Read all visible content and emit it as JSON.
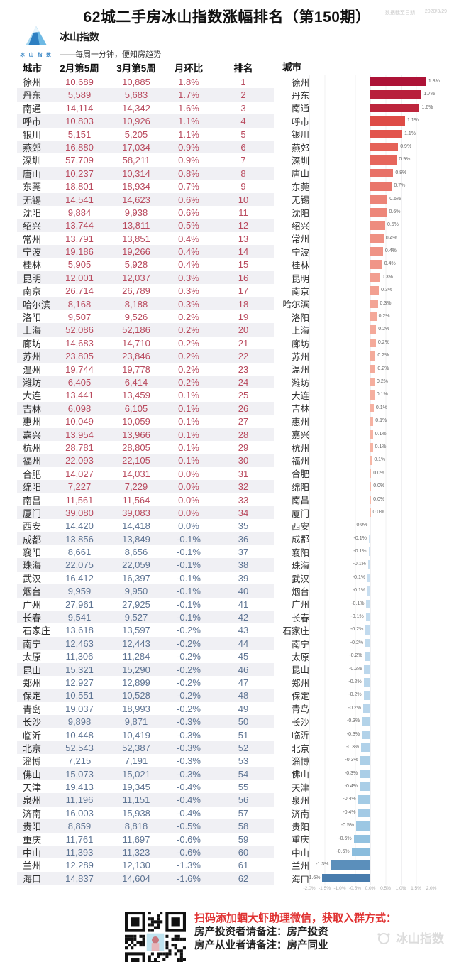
{
  "meta": {
    "note": "数据截至日期",
    "date": "2020/3/29"
  },
  "title": "62城二手房冰山指数涨幅排名（第150期）",
  "logo": {
    "name": "冰山指数",
    "caption": "冰 山 指 数",
    "tagline": "——每周一分钟，便知房趋势"
  },
  "table": {
    "headers": {
      "city": "城市",
      "feb": "2月第5周",
      "mar": "3月第5周",
      "mom": "月环比",
      "rank": "排名"
    }
  },
  "chart": {
    "city_header": "城市",
    "axis_ticks": [
      "-2.0%",
      "-1.5%",
      "-1.0%",
      "-0.5%",
      "0.0%",
      "0.5%",
      "1.0%",
      "1.5%",
      "2.0%"
    ]
  },
  "rows": [
    {
      "city": "徐州",
      "feb": "10,689",
      "mar": "10,885",
      "mom": "1.8%",
      "rank": "1"
    },
    {
      "city": "丹东",
      "feb": "5,589",
      "mar": "5,683",
      "mom": "1.7%",
      "rank": "2"
    },
    {
      "city": "南通",
      "feb": "14,114",
      "mar": "14,342",
      "mom": "1.6%",
      "rank": "3"
    },
    {
      "city": "呼市",
      "feb": "10,803",
      "mar": "10,926",
      "mom": "1.1%",
      "rank": "4"
    },
    {
      "city": "银川",
      "feb": "5,151",
      "mar": "5,205",
      "mom": "1.1%",
      "rank": "5"
    },
    {
      "city": "燕郊",
      "feb": "16,880",
      "mar": "17,034",
      "mom": "0.9%",
      "rank": "6"
    },
    {
      "city": "深圳",
      "feb": "57,709",
      "mar": "58,211",
      "mom": "0.9%",
      "rank": "7"
    },
    {
      "city": "唐山",
      "feb": "10,237",
      "mar": "10,314",
      "mom": "0.8%",
      "rank": "8"
    },
    {
      "city": "东莞",
      "feb": "18,801",
      "mar": "18,934",
      "mom": "0.7%",
      "rank": "9"
    },
    {
      "city": "无锡",
      "feb": "14,541",
      "mar": "14,623",
      "mom": "0.6%",
      "rank": "10"
    },
    {
      "city": "沈阳",
      "feb": "9,884",
      "mar": "9,938",
      "mom": "0.6%",
      "rank": "11"
    },
    {
      "city": "绍兴",
      "feb": "13,744",
      "mar": "13,811",
      "mom": "0.5%",
      "rank": "12"
    },
    {
      "city": "常州",
      "feb": "13,791",
      "mar": "13,851",
      "mom": "0.4%",
      "rank": "13"
    },
    {
      "city": "宁波",
      "feb": "19,186",
      "mar": "19,266",
      "mom": "0.4%",
      "rank": "14"
    },
    {
      "city": "桂林",
      "feb": "5,905",
      "mar": "5,928",
      "mom": "0.4%",
      "rank": "15"
    },
    {
      "city": "昆明",
      "feb": "12,001",
      "mar": "12,037",
      "mom": "0.3%",
      "rank": "16"
    },
    {
      "city": "南京",
      "feb": "26,714",
      "mar": "26,789",
      "mom": "0.3%",
      "rank": "17"
    },
    {
      "city": "哈尔滨",
      "feb": "8,168",
      "mar": "8,188",
      "mom": "0.3%",
      "rank": "18"
    },
    {
      "city": "洛阳",
      "feb": "9,507",
      "mar": "9,526",
      "mom": "0.2%",
      "rank": "19"
    },
    {
      "city": "上海",
      "feb": "52,086",
      "mar": "52,186",
      "mom": "0.2%",
      "rank": "20"
    },
    {
      "city": "廊坊",
      "feb": "14,683",
      "mar": "14,710",
      "mom": "0.2%",
      "rank": "21"
    },
    {
      "city": "苏州",
      "feb": "23,805",
      "mar": "23,846",
      "mom": "0.2%",
      "rank": "22"
    },
    {
      "city": "温州",
      "feb": "19,744",
      "mar": "19,778",
      "mom": "0.2%",
      "rank": "23"
    },
    {
      "city": "潍坊",
      "feb": "6,405",
      "mar": "6,414",
      "mom": "0.2%",
      "rank": "24"
    },
    {
      "city": "大连",
      "feb": "13,441",
      "mar": "13,459",
      "mom": "0.1%",
      "rank": "25"
    },
    {
      "city": "吉林",
      "feb": "6,098",
      "mar": "6,105",
      "mom": "0.1%",
      "rank": "26"
    },
    {
      "city": "惠州",
      "feb": "10,049",
      "mar": "10,059",
      "mom": "0.1%",
      "rank": "27"
    },
    {
      "city": "嘉兴",
      "feb": "13,954",
      "mar": "13,966",
      "mom": "0.1%",
      "rank": "28"
    },
    {
      "city": "杭州",
      "feb": "28,781",
      "mar": "28,805",
      "mom": "0.1%",
      "rank": "29"
    },
    {
      "city": "福州",
      "feb": "22,093",
      "mar": "22,105",
      "mom": "0.1%",
      "rank": "30"
    },
    {
      "city": "合肥",
      "feb": "14,027",
      "mar": "14,031",
      "mom": "0.0%",
      "rank": "31"
    },
    {
      "city": "绵阳",
      "feb": "7,227",
      "mar": "7,229",
      "mom": "0.0%",
      "rank": "32"
    },
    {
      "city": "南昌",
      "feb": "11,561",
      "mar": "11,564",
      "mom": "0.0%",
      "rank": "33"
    },
    {
      "city": "厦门",
      "feb": "39,080",
      "mar": "39,083",
      "mom": "0.0%",
      "rank": "34"
    },
    {
      "city": "西安",
      "feb": "14,420",
      "mar": "14,418",
      "mom": "0.0%",
      "rank": "35"
    },
    {
      "city": "成都",
      "feb": "13,856",
      "mar": "13,849",
      "mom": "-0.1%",
      "rank": "36"
    },
    {
      "city": "襄阳",
      "feb": "8,661",
      "mar": "8,656",
      "mom": "-0.1%",
      "rank": "37"
    },
    {
      "city": "珠海",
      "feb": "22,075",
      "mar": "22,059",
      "mom": "-0.1%",
      "rank": "38"
    },
    {
      "city": "武汉",
      "feb": "16,412",
      "mar": "16,397",
      "mom": "-0.1%",
      "rank": "39"
    },
    {
      "city": "烟台",
      "feb": "9,959",
      "mar": "9,950",
      "mom": "-0.1%",
      "rank": "40"
    },
    {
      "city": "广州",
      "feb": "27,961",
      "mar": "27,925",
      "mom": "-0.1%",
      "rank": "41"
    },
    {
      "city": "长春",
      "feb": "9,541",
      "mar": "9,527",
      "mom": "-0.1%",
      "rank": "42"
    },
    {
      "city": "石家庄",
      "feb": "13,618",
      "mar": "13,597",
      "mom": "-0.2%",
      "rank": "43"
    },
    {
      "city": "南宁",
      "feb": "12,463",
      "mar": "12,443",
      "mom": "-0.2%",
      "rank": "44"
    },
    {
      "city": "太原",
      "feb": "11,306",
      "mar": "11,284",
      "mom": "-0.2%",
      "rank": "45"
    },
    {
      "city": "昆山",
      "feb": "15,321",
      "mar": "15,290",
      "mom": "-0.2%",
      "rank": "46"
    },
    {
      "city": "郑州",
      "feb": "12,927",
      "mar": "12,899",
      "mom": "-0.2%",
      "rank": "47"
    },
    {
      "city": "保定",
      "feb": "10,551",
      "mar": "10,528",
      "mom": "-0.2%",
      "rank": "48"
    },
    {
      "city": "青岛",
      "feb": "19,037",
      "mar": "18,993",
      "mom": "-0.2%",
      "rank": "49"
    },
    {
      "city": "长沙",
      "feb": "9,898",
      "mar": "9,871",
      "mom": "-0.3%",
      "rank": "50"
    },
    {
      "city": "临沂",
      "feb": "10,448",
      "mar": "10,419",
      "mom": "-0.3%",
      "rank": "51"
    },
    {
      "city": "北京",
      "feb": "52,543",
      "mar": "52,387",
      "mom": "-0.3%",
      "rank": "52"
    },
    {
      "city": "淄博",
      "feb": "7,215",
      "mar": "7,191",
      "mom": "-0.3%",
      "rank": "53"
    },
    {
      "city": "佛山",
      "feb": "15,073",
      "mar": "15,021",
      "mom": "-0.3%",
      "rank": "54"
    },
    {
      "city": "天津",
      "feb": "19,413",
      "mar": "19,345",
      "mom": "-0.4%",
      "rank": "55"
    },
    {
      "city": "泉州",
      "feb": "11,196",
      "mar": "11,151",
      "mom": "-0.4%",
      "rank": "56"
    },
    {
      "city": "济南",
      "feb": "16,003",
      "mar": "15,938",
      "mom": "-0.4%",
      "rank": "57"
    },
    {
      "city": "贵阳",
      "feb": "8,859",
      "mar": "8,818",
      "mom": "-0.5%",
      "rank": "58"
    },
    {
      "city": "重庆",
      "feb": "11,761",
      "mar": "11,697",
      "mom": "-0.6%",
      "rank": "59"
    },
    {
      "city": "中山",
      "feb": "11,393",
      "mar": "11,323",
      "mom": "-0.6%",
      "rank": "60"
    },
    {
      "city": "兰州",
      "feb": "12,289",
      "mar": "12,130",
      "mom": "-1.3%",
      "rank": "61"
    },
    {
      "city": "海口",
      "feb": "14,837",
      "mar": "14,604",
      "mom": "-1.6%",
      "rank": "62"
    }
  ],
  "chart_data": {
    "type": "bar",
    "orientation": "horizontal",
    "title": "62城二手房冰山指数涨幅排名（第150期）",
    "xlabel": "月环比",
    "xlim": [
      -2.0,
      2.0
    ],
    "grid": true,
    "categories": [
      "徐州",
      "丹东",
      "南通",
      "呼市",
      "银川",
      "燕郊",
      "深圳",
      "唐山",
      "东莞",
      "无锡",
      "沈阳",
      "绍兴",
      "常州",
      "宁波",
      "桂林",
      "昆明",
      "南京",
      "哈尔滨",
      "洛阳",
      "上海",
      "廊坊",
      "苏州",
      "温州",
      "潍坊",
      "大连",
      "吉林",
      "惠州",
      "嘉兴",
      "杭州",
      "福州",
      "合肥",
      "绵阳",
      "南昌",
      "厦门",
      "西安",
      "成都",
      "襄阳",
      "珠海",
      "武汉",
      "烟台",
      "广州",
      "长春",
      "石家庄",
      "南宁",
      "太原",
      "昆山",
      "郑州",
      "保定",
      "青岛",
      "长沙",
      "临沂",
      "北京",
      "淄博",
      "佛山",
      "天津",
      "泉州",
      "济南",
      "贵阳",
      "重庆",
      "中山",
      "兰州",
      "海口"
    ],
    "values": [
      1.8,
      1.7,
      1.6,
      1.1,
      1.1,
      0.9,
      0.9,
      0.8,
      0.7,
      0.6,
      0.6,
      0.5,
      0.4,
      0.4,
      0.4,
      0.3,
      0.3,
      0.3,
      0.2,
      0.2,
      0.2,
      0.2,
      0.2,
      0.2,
      0.1,
      0.1,
      0.1,
      0.1,
      0.1,
      0.1,
      0.0,
      0.0,
      0.0,
      0.0,
      0.0,
      -0.1,
      -0.1,
      -0.1,
      -0.1,
      -0.1,
      -0.1,
      -0.1,
      -0.2,
      -0.2,
      -0.2,
      -0.2,
      -0.2,
      -0.2,
      -0.2,
      -0.3,
      -0.3,
      -0.3,
      -0.3,
      -0.3,
      -0.4,
      -0.4,
      -0.4,
      -0.5,
      -0.6,
      -0.6,
      -1.3,
      -1.6
    ],
    "series": [
      {
        "name": "2月第5周",
        "note": "index values in table column 2"
      },
      {
        "name": "3月第5周",
        "note": "index values in table column 3"
      }
    ]
  },
  "footer": {
    "scan_text": "扫码添加蝈大虾助理微信，获取入群方式：",
    "line_investor": "房产投资者请备注：房产投资",
    "line_professional": "房产从业者请备注：房产同业",
    "watermark": "冰山指数"
  },
  "colors": {
    "positive_text": "#b94a5e",
    "negative_text": "#5e7493",
    "stripe": "#f0f0f4",
    "bar_pos_light": "#f8bcab",
    "bar_pos_mid": "#e14f47",
    "bar_pos_dark": "#ac1237",
    "bar_neg_light": "#d3e4f3",
    "bar_neg_mid": "#8cbede",
    "bar_neg_dark": "#3f73a6",
    "footer_red": "#e03131"
  }
}
